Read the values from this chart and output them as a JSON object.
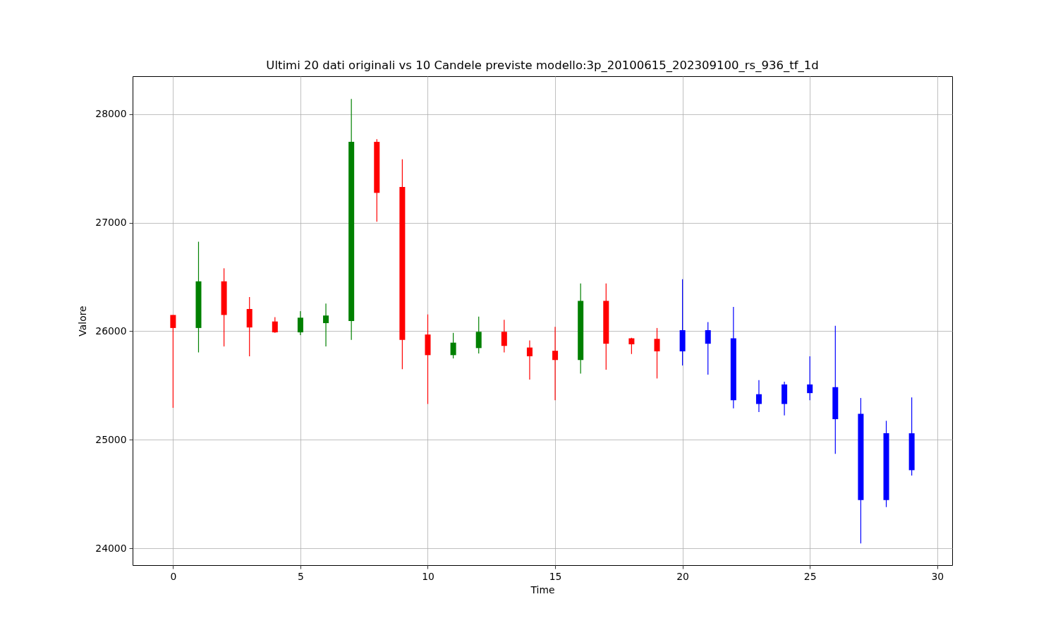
{
  "chart_data": {
    "type": "candlestick",
    "title": "Ultimi 20 dati originali vs 10 Candele previste modello:3p_20100615_202309100_rs_936_tf_1d",
    "xlabel": "Time",
    "ylabel": "Valore",
    "x": [
      0,
      1,
      2,
      3,
      4,
      5,
      6,
      7,
      8,
      9,
      10,
      11,
      12,
      13,
      14,
      15,
      16,
      17,
      18,
      19,
      20,
      21,
      22,
      23,
      24,
      25,
      26,
      27,
      28,
      29
    ],
    "ohlc": [
      [
        26150,
        26150,
        25295,
        26030
      ],
      [
        26030,
        26825,
        25805,
        26460
      ],
      [
        26460,
        26580,
        25860,
        26150
      ],
      [
        26205,
        26315,
        25770,
        26035
      ],
      [
        26090,
        26130,
        25985,
        25990
      ],
      [
        25990,
        26185,
        25965,
        26125
      ],
      [
        26075,
        26255,
        25860,
        26145
      ],
      [
        26095,
        28140,
        25920,
        27745
      ],
      [
        27745,
        27770,
        27010,
        27275
      ],
      [
        27330,
        27585,
        25650,
        25920
      ],
      [
        25970,
        26155,
        25330,
        25780
      ],
      [
        25780,
        25985,
        25750,
        25895
      ],
      [
        25845,
        26135,
        25795,
        25995
      ],
      [
        25995,
        26105,
        25805,
        25865
      ],
      [
        25850,
        25915,
        25555,
        25770
      ],
      [
        25820,
        26040,
        25365,
        25735
      ],
      [
        25735,
        26440,
        25610,
        26280
      ],
      [
        26280,
        26440,
        25645,
        25885
      ],
      [
        25935,
        25940,
        25790,
        25880
      ],
      [
        25930,
        26030,
        25565,
        25815
      ],
      [
        25815,
        26480,
        25685,
        26010
      ],
      [
        26010,
        26085,
        25600,
        25885
      ],
      [
        25935,
        26225,
        25290,
        25365
      ],
      [
        25420,
        25550,
        25255,
        25330
      ],
      [
        25330,
        25535,
        25225,
        25510
      ],
      [
        25510,
        25770,
        25365,
        25430
      ],
      [
        25485,
        26050,
        24870,
        25190
      ],
      [
        25240,
        25385,
        24045,
        24445
      ],
      [
        24445,
        25175,
        24380,
        25060
      ],
      [
        25060,
        25390,
        24670,
        24720
      ]
    ],
    "colors": [
      "#ff0000",
      "#008000",
      "#ff0000",
      "#ff0000",
      "#ff0000",
      "#008000",
      "#008000",
      "#008000",
      "#ff0000",
      "#ff0000",
      "#ff0000",
      "#008000",
      "#008000",
      "#ff0000",
      "#ff0000",
      "#ff0000",
      "#008000",
      "#ff0000",
      "#ff0000",
      "#ff0000",
      "#0000ff",
      "#0000ff",
      "#0000ff",
      "#0000ff",
      "#0000ff",
      "#0000ff",
      "#0000ff",
      "#0000ff",
      "#0000ff",
      "#0000ff"
    ],
    "xlim": [
      -1.45,
      30.45
    ],
    "ylim": [
      23845,
      28350
    ],
    "xticks": [
      0,
      5,
      10,
      15,
      20,
      25,
      30
    ],
    "yticks": [
      24000,
      25000,
      26000,
      27000,
      28000
    ],
    "grid": true
  }
}
